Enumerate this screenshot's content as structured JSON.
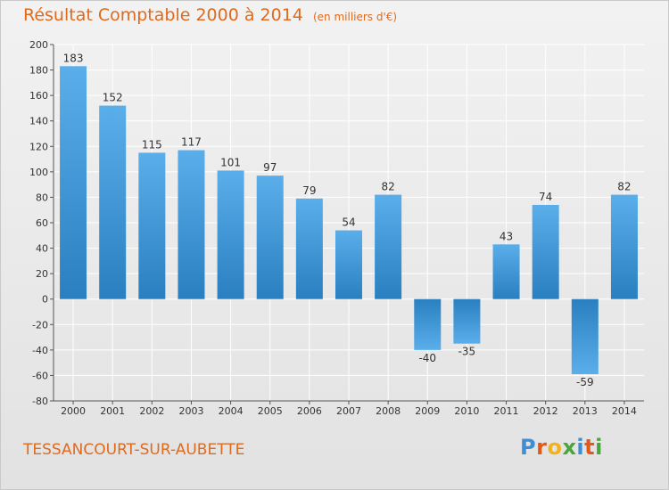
{
  "header": {
    "title": "Résultat Comptable 2000 à 2014",
    "unit": "(en milliers d'€)"
  },
  "footer": {
    "commune": "TESSANCOURT-SUR-AUBETTE",
    "brand": "Proxiti",
    "brand_letters": [
      {
        "ch": "P",
        "color": "#3a8fd6"
      },
      {
        "ch": "r",
        "color": "#e05a1a"
      },
      {
        "ch": "o",
        "color": "#f2b21c"
      },
      {
        "ch": "x",
        "color": "#4aa53a"
      },
      {
        "ch": "i",
        "color": "#3a8fd6"
      },
      {
        "ch": "t",
        "color": "#e05a1a"
      },
      {
        "ch": "i",
        "color": "#4aa53a"
      }
    ]
  },
  "colors": {
    "accent": "#e06a1c",
    "bar_top": "#5aaeea",
    "bar_bottom": "#2a7fc0",
    "grid": "#ffffff",
    "axis": "#555555"
  },
  "chart_data": {
    "type": "bar",
    "title": "Résultat Comptable 2000 à 2014",
    "subtitle": "(en milliers d'€)",
    "xlabel": "",
    "ylabel": "",
    "categories": [
      "2000",
      "2001",
      "2002",
      "2003",
      "2004",
      "2005",
      "2006",
      "2007",
      "2008",
      "2009",
      "2010",
      "2011",
      "2012",
      "2013",
      "2014"
    ],
    "values": [
      183,
      152,
      115,
      117,
      101,
      97,
      79,
      54,
      82,
      -40,
      -35,
      43,
      74,
      -59,
      82
    ],
    "ylim": [
      -80,
      200
    ],
    "yticks": [
      -80,
      -60,
      -40,
      -20,
      0,
      20,
      40,
      60,
      80,
      100,
      120,
      140,
      160,
      180,
      200
    ],
    "grid": true,
    "legend": "none"
  }
}
